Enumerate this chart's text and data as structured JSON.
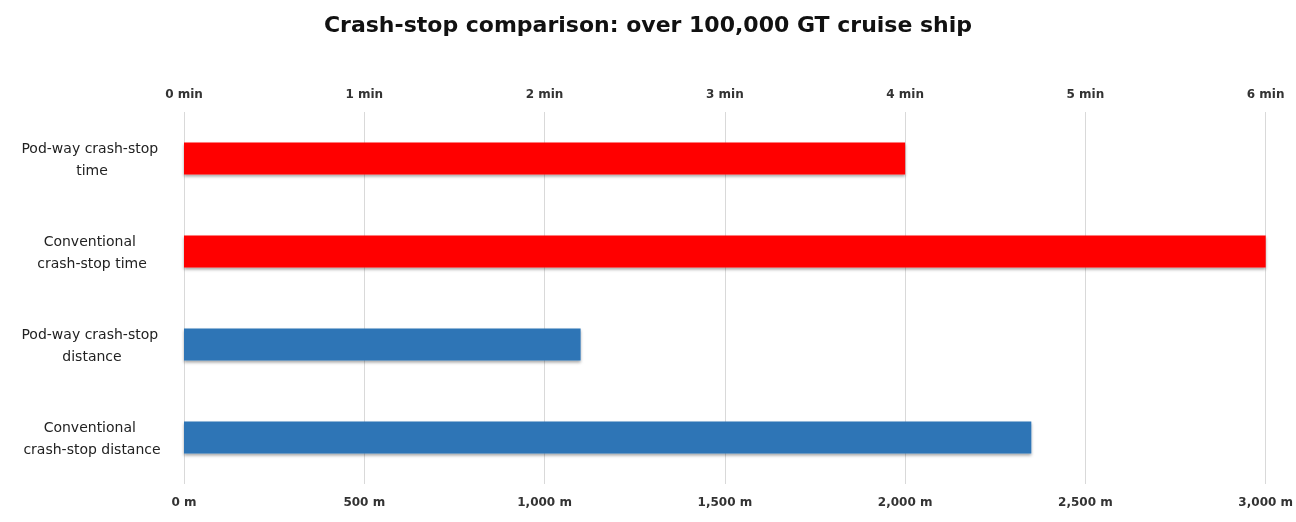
{
  "chart_data": {
    "type": "bar",
    "orientation": "horizontal",
    "title": "Crash-stop comparison: over 100,000 GT cruise ship",
    "categories": [
      "Pod-way crash-stop time",
      "Conventional crash-stop time",
      "Pod-way crash-stop distance",
      "Conventional crash-stop distance"
    ],
    "series": [
      {
        "color": "#ff0000",
        "axis": "x2",
        "values": [
          4,
          6,
          null,
          null
        ]
      },
      {
        "color": "#2e75b6",
        "values": [
          null,
          null,
          1100,
          2350
        ]
      }
    ],
    "xlim": [
      0,
      3000
    ],
    "xticks": [
      {
        "value": 0,
        "label": "0 m"
      },
      {
        "value": 500,
        "label": "500 m"
      },
      {
        "value": 1000,
        "label": "1,000 m"
      },
      {
        "value": 1500,
        "label": "1,500 m"
      },
      {
        "value": 2000,
        "label": "2,000 m"
      },
      {
        "value": 2500,
        "label": "2,500 m"
      },
      {
        "value": 3000,
        "label": "3,000 m"
      }
    ],
    "x2lim": [
      0,
      6
    ],
    "x2ticks": [
      {
        "value": 0,
        "label": "0 min"
      },
      {
        "value": 1,
        "label": "1 min"
      },
      {
        "value": 2,
        "label": "2 min"
      },
      {
        "value": 3,
        "label": "3 min"
      },
      {
        "value": 4,
        "label": "4 min"
      },
      {
        "value": 5,
        "label": "5 min"
      },
      {
        "value": 6,
        "label": "6 min"
      }
    ],
    "grid": "x"
  }
}
